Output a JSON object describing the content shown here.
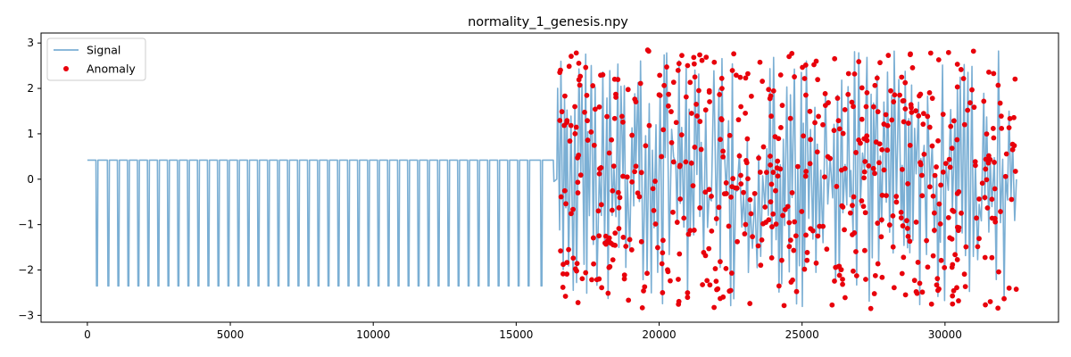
{
  "chart_data": {
    "type": "line",
    "title": "normality_1_genesis.npy",
    "xlabel": "",
    "ylabel": "",
    "xlim": [
      -1620,
      33970
    ],
    "ylim": [
      -3.15,
      3.22
    ],
    "x_ticks": [
      0,
      5000,
      10000,
      15000,
      20000,
      25000,
      30000
    ],
    "y_ticks": [
      -3,
      -2,
      -1,
      0,
      1,
      2,
      3
    ],
    "grid": false,
    "legend_position": "upper-left",
    "colors": {
      "signal": "#7bafd4",
      "anomaly": "#e8000b",
      "frame": "#000000"
    },
    "series": [
      {
        "name": "Signal",
        "type": "line",
        "description_segments": [
          {
            "x_range": [
              0,
              16300
            ],
            "baseline": 0.42,
            "dip_value": -2.35,
            "dip_x": [
              300,
              700,
              1050,
              1400,
              1750,
              2100,
              2450,
              2800,
              3150,
              3500,
              3850,
              4200,
              4550,
              4900,
              5250,
              5600,
              5950,
              6300,
              6650,
              7000,
              7350,
              7700,
              8050,
              8400,
              8750,
              9100,
              9450,
              9800,
              10150,
              10500,
              10850,
              11200,
              11550,
              11900,
              12250,
              12600,
              12950,
              13300,
              13650,
              14000,
              14350,
              14700,
              15050,
              15400,
              15850
            ]
          },
          {
            "x_range": [
              16300,
              32500
            ],
            "amplitude_min": -2.85,
            "amplitude_max": 2.9,
            "style": "oscillating"
          }
        ]
      },
      {
        "name": "Anomaly",
        "type": "scatter",
        "x_range": [
          16500,
          32500
        ],
        "y_range": [
          -2.85,
          2.85
        ],
        "count": 620
      }
    ]
  }
}
